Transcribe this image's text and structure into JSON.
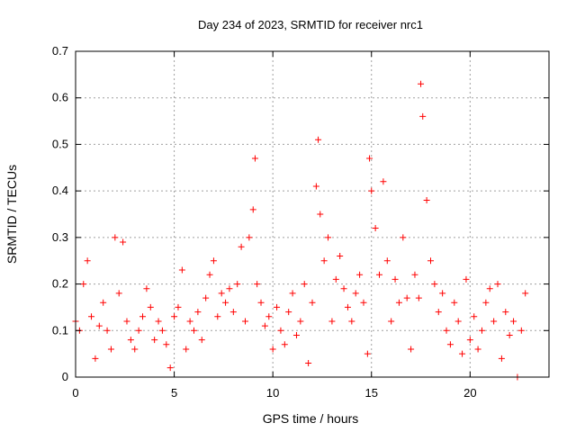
{
  "chart_data": {
    "type": "scatter",
    "title": "Day 234 of 2023, SRMTID for receiver nrc1",
    "xlabel": "GPS time / hours",
    "ylabel": "SRMTID / TECUs",
    "xlim": [
      0,
      24
    ],
    "ylim": [
      0,
      0.7
    ],
    "xticks": [
      0,
      5,
      10,
      15,
      20
    ],
    "yticks": [
      0,
      0.1,
      0.2,
      0.3,
      0.4,
      0.5,
      0.6,
      0.7
    ],
    "xtick_labels": [
      "0",
      "5",
      "10",
      "15",
      "20"
    ],
    "ytick_labels": [
      "0",
      "0.1",
      "0.2",
      "0.3",
      "0.4",
      "0.5",
      "0.6",
      "0.7"
    ],
    "grid": true,
    "marker": "+",
    "color": "#ff0000",
    "series": [
      {
        "name": "SRMTID",
        "x": [
          0.0,
          0.2,
          0.4,
          0.6,
          0.8,
          1.0,
          1.2,
          1.4,
          1.6,
          1.8,
          2.0,
          2.2,
          2.4,
          2.6,
          2.8,
          3.0,
          3.2,
          3.4,
          3.6,
          3.8,
          4.0,
          4.2,
          4.4,
          4.6,
          4.8,
          5.0,
          5.2,
          5.4,
          5.6,
          5.8,
          6.0,
          6.2,
          6.4,
          6.6,
          6.8,
          7.0,
          7.2,
          7.4,
          7.6,
          7.8,
          8.0,
          8.2,
          8.4,
          8.6,
          8.8,
          9.0,
          9.1,
          9.2,
          9.4,
          9.6,
          9.8,
          10.0,
          10.2,
          10.4,
          10.6,
          10.8,
          11.0,
          11.2,
          11.4,
          11.6,
          11.8,
          12.0,
          12.2,
          12.3,
          12.4,
          12.6,
          12.8,
          13.0,
          13.2,
          13.4,
          13.6,
          13.8,
          14.0,
          14.2,
          14.4,
          14.6,
          14.8,
          14.9,
          15.0,
          15.2,
          15.4,
          15.6,
          15.8,
          16.0,
          16.2,
          16.4,
          16.6,
          16.8,
          17.0,
          17.2,
          17.4,
          17.5,
          17.6,
          17.8,
          18.0,
          18.2,
          18.4,
          18.6,
          18.8,
          19.0,
          19.2,
          19.4,
          19.6,
          19.8,
          20.0,
          20.2,
          20.4,
          20.6,
          20.8,
          21.0,
          21.2,
          21.4,
          21.6,
          21.8,
          22.0,
          22.2,
          22.4,
          22.6,
          22.8
        ],
        "y": [
          0.12,
          0.1,
          0.2,
          0.25,
          0.13,
          0.04,
          0.11,
          0.16,
          0.1,
          0.06,
          0.3,
          0.18,
          0.29,
          0.12,
          0.08,
          0.06,
          0.1,
          0.13,
          0.19,
          0.15,
          0.08,
          0.12,
          0.1,
          0.07,
          0.02,
          0.13,
          0.15,
          0.23,
          0.06,
          0.12,
          0.1,
          0.14,
          0.08,
          0.17,
          0.22,
          0.25,
          0.13,
          0.18,
          0.16,
          0.19,
          0.14,
          0.2,
          0.28,
          0.12,
          0.3,
          0.36,
          0.47,
          0.2,
          0.16,
          0.11,
          0.13,
          0.06,
          0.15,
          0.1,
          0.07,
          0.14,
          0.18,
          0.09,
          0.12,
          0.2,
          0.03,
          0.16,
          0.41,
          0.51,
          0.35,
          0.25,
          0.3,
          0.12,
          0.21,
          0.26,
          0.19,
          0.15,
          0.12,
          0.18,
          0.22,
          0.16,
          0.05,
          0.47,
          0.4,
          0.32,
          0.22,
          0.42,
          0.25,
          0.12,
          0.21,
          0.16,
          0.3,
          0.17,
          0.06,
          0.22,
          0.17,
          0.63,
          0.56,
          0.38,
          0.25,
          0.2,
          0.14,
          0.18,
          0.1,
          0.07,
          0.16,
          0.12,
          0.05,
          0.21,
          0.08,
          0.13,
          0.06,
          0.1,
          0.16,
          0.19,
          0.12,
          0.2,
          0.04,
          0.14,
          0.09,
          0.12,
          0.0,
          0.1,
          0.18
        ]
      }
    ]
  }
}
